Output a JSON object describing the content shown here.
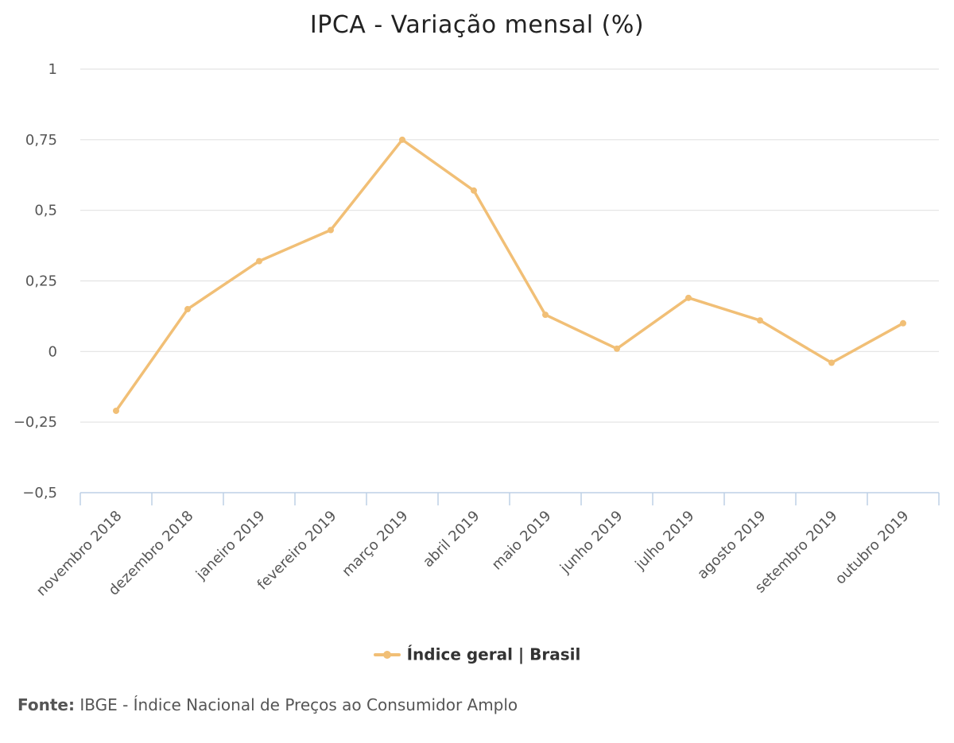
{
  "chart_data": {
    "type": "line",
    "title": "IPCA - Variação mensal (%)",
    "categories": [
      "novembro 2018",
      "dezembro 2018",
      "janeiro 2019",
      "fevereiro 2019",
      "março 2019",
      "abril 2019",
      "maio 2019",
      "junho 2019",
      "julho 2019",
      "agosto 2019",
      "setembro 2019",
      "outubro 2019"
    ],
    "series": [
      {
        "name": "Índice geral | Brasil",
        "values": [
          -0.21,
          0.15,
          0.32,
          0.43,
          0.75,
          0.57,
          0.13,
          0.01,
          0.19,
          0.11,
          -0.04,
          0.1
        ],
        "color": "#f1bf76"
      }
    ],
    "y_ticks": [
      "1",
      "0,75",
      "0,5",
      "0,25",
      "0",
      "-0,25",
      "-0,5"
    ],
    "ylim": [
      -0.5,
      1
    ],
    "xlabel": "",
    "ylabel": "",
    "grid": true,
    "legend": "bottom-center"
  },
  "source": {
    "label": "Fonte:",
    "text": "IBGE - Índice Nacional de Preços ao Consumidor Amplo"
  }
}
